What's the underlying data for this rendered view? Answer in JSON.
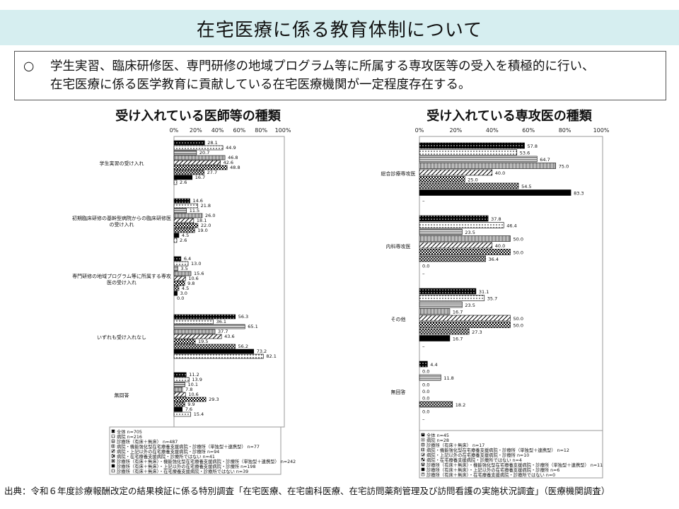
{
  "header": {
    "title": "在宅医療に係る教育体制について"
  },
  "summary": {
    "bullet": "○",
    "line1": "学生実習、臨床研修医、専門研修の地域プログラム等に所属する専攻医等の受入を積極的に行い、",
    "line2": "在宅医療に係る医学教育に貢献している在宅医療機関が一定程度存在する。"
  },
  "colors": {
    "band": "#d6eef0",
    "bar_dark": "#000000",
    "bar_gray": "#8c8c8c",
    "border": "#555555"
  },
  "source": "出典：令和６年度診療報酬改定の結果検証に係る特別調査「在宅医療、在宅歯科医療、在宅訪問薬剤管理及び訪問看護の実施状況調査」（医療機関調査）",
  "chart_data": [
    {
      "type": "bar",
      "orientation": "horizontal",
      "title": "受け入れている医師等の種類",
      "xlim": [
        0,
        100
      ],
      "ticks": [
        "0%",
        "20%",
        "40%",
        "60%",
        "80%",
        "100%"
      ],
      "categories": [
        [
          "学生実習の受け入れ"
        ],
        [
          "初期臨床研修の基幹型病院からの臨床研修医",
          "の受け入れ"
        ],
        [
          "専門研修の地域プログラム等に所属する専攻",
          "医の受け入れ"
        ],
        [
          "いずれも受け入れなし"
        ],
        [
          "無回答"
        ]
      ],
      "series": [
        {
          "name": "全体 n=705",
          "pattern": "dots-dark",
          "values": [
            28.1,
            14.6,
            6.4,
            56.3,
            11.2
          ]
        },
        {
          "name": "病院 n=216",
          "pattern": "dots-light",
          "values": [
            44.9,
            21.8,
            13.0,
            36.1,
            13.9
          ]
        },
        {
          "name": "診療所（有床＋無床） n=487",
          "pattern": "hstripe",
          "values": [
            20.7,
            11.5,
            3.5,
            65.1,
            10.1
          ]
        },
        {
          "name": "病院・機能強化型在宅療養支援病院・診療所（単独型＋連携型） n=77",
          "pattern": "vstripe",
          "values": [
            46.8,
            26.0,
            15.6,
            37.7,
            7.8
          ]
        },
        {
          "name": "病院・上記以外の在宅療養支援病院・診療所 n=94",
          "pattern": "diag",
          "values": [
            42.6,
            18.1,
            10.6,
            43.6,
            10.6
          ]
        },
        {
          "name": "病院・在宅療養支援病院・診療所ではない n=41",
          "pattern": "check",
          "values": [
            48.8,
            22.0,
            9.8,
            19.5,
            29.3
          ]
        },
        {
          "name": "診療所（有床＋無床）・機能強化型在宅療養支援病院・診療所（単独型＋連携型） n=242",
          "pattern": "hatch",
          "values": [
            27.7,
            19.0,
            4.5,
            56.2,
            9.9
          ]
        },
        {
          "name": "診療所（有床＋無床）・上記以外の在宅療養支援病院・診療所 n=198",
          "pattern": "solid-dark",
          "values": [
            16.7,
            4.5,
            3.0,
            73.2,
            7.6
          ]
        },
        {
          "name": "診療所（有床＋無床）・在宅療養支援病院・診療所ではない n=39",
          "pattern": "dots-light",
          "values": [
            2.6,
            2.6,
            0.0,
            82.1,
            15.4
          ]
        }
      ]
    },
    {
      "type": "bar",
      "orientation": "horizontal",
      "title": "受け入れている専攻医の種類",
      "xlim": [
        0,
        100
      ],
      "ticks": [
        "0%",
        "20%",
        "40%",
        "60%",
        "80%",
        "100%"
      ],
      "categories": [
        [
          "総合診療専攻医"
        ],
        [
          "内科専攻医"
        ],
        [
          "その他"
        ],
        [
          "無回答"
        ]
      ],
      "series": [
        {
          "name": "全体 n=45",
          "pattern": "dots-dark",
          "values": [
            57.8,
            37.8,
            31.1,
            4.4
          ]
        },
        {
          "name": "病院 n=28",
          "pattern": "dots-light",
          "values": [
            53.6,
            46.4,
            35.7,
            0.0
          ]
        },
        {
          "name": "診療所（有床＋無床） n=17",
          "pattern": "hstripe",
          "values": [
            64.7,
            23.5,
            23.5,
            11.8
          ]
        },
        {
          "name": "病院・機能強化型在宅療養支援病院・診療所（単独型＋連携型） n=12",
          "pattern": "vstripe",
          "values": [
            75.0,
            50.0,
            16.7,
            0.0
          ]
        },
        {
          "name": "病院・上記以外の在宅療養支援病院・診療所 n=10",
          "pattern": "diag",
          "values": [
            40.0,
            40.0,
            50.0,
            0.0
          ]
        },
        {
          "name": "病院・在宅療養支援病院・診療所ではない n=4",
          "pattern": "check",
          "values": [
            25.0,
            50.0,
            50.0,
            0.0
          ]
        },
        {
          "name": "診療所（有床＋無床）・機能強化型在宅療養支援病院・診療所（単独型＋連携型） n=11",
          "pattern": "hatch",
          "values": [
            54.5,
            36.4,
            27.3,
            18.2
          ]
        },
        {
          "name": "診療所（有床＋無床）・上記以外の在宅療養支援病院・診療所 n=6",
          "pattern": "solid-dark",
          "values": [
            83.3,
            0.0,
            16.7,
            0.0
          ]
        },
        {
          "name": "診療所（有床＋無床）・在宅療養支援病院・診療所ではない n=0",
          "pattern": "dots-light",
          "values": [
            null,
            null,
            null,
            null
          ]
        }
      ]
    }
  ]
}
